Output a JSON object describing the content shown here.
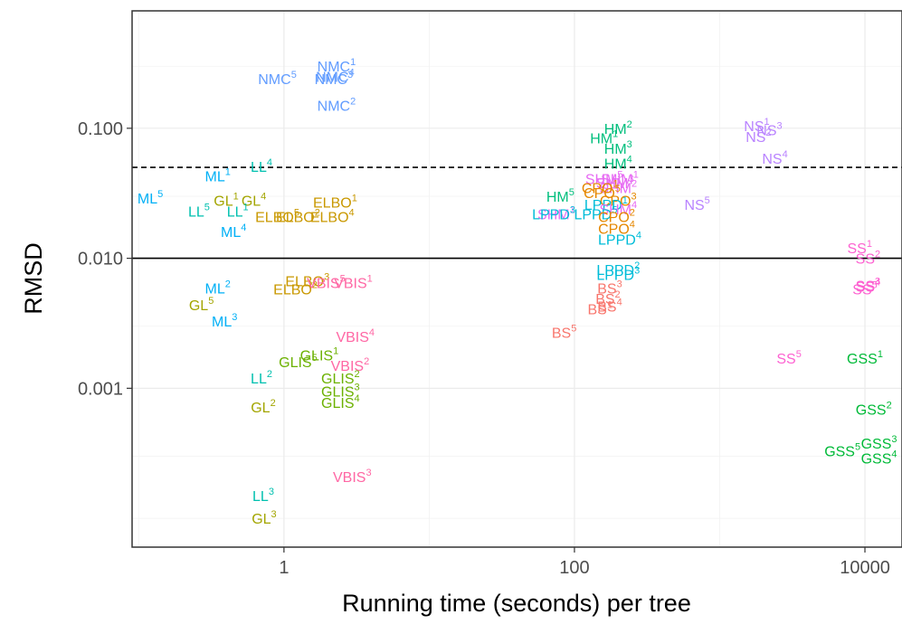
{
  "chart_data": {
    "type": "scatter",
    "xlabel": "Running time (seconds) per tree",
    "ylabel": "RMSD",
    "x_scale": "log10",
    "y_scale": "log10",
    "xlim": [
      0.09,
      18000
    ],
    "ylim": [
      6e-05,
      0.8
    ],
    "x_ticks": [
      {
        "value": 1,
        "label": "1"
      },
      {
        "value": 100,
        "label": "100"
      },
      {
        "value": 10000,
        "label": "10000"
      }
    ],
    "y_ticks": [
      {
        "value": 0.001,
        "label": "0.001"
      },
      {
        "value": 0.01,
        "label": "0.010"
      },
      {
        "value": 0.1,
        "label": "0.100"
      }
    ],
    "grid": true,
    "reference_lines": [
      {
        "y": 0.01,
        "style": "solid"
      },
      {
        "y": 0.05,
        "style": "dashed"
      }
    ],
    "colors": {
      "BS": "#F8766D",
      "CPO": "#E58700",
      "ELBO": "#C99800",
      "GL": "#A3A500",
      "GLIS": "#6BB100",
      "GSS": "#00BA38",
      "HM": "#00BF7D",
      "LL": "#00C0AF",
      "LPPD": "#00BCD8",
      "ML": "#00B0F6",
      "NMC": "#619CFF",
      "NS": "#B983FF",
      "SHM": "#E76BF3",
      "SS": "#FD61D1",
      "VBIS": "#FF67A4"
    },
    "points": [
      {
        "method": "NMC",
        "run": "1",
        "x": 2.3,
        "y": 0.3
      },
      {
        "method": "NMC",
        "run": "4",
        "x": 2.25,
        "y": 0.25
      },
      {
        "method": "NMC",
        "run": "3",
        "x": 2.2,
        "y": 0.24
      },
      {
        "method": "NMC",
        "run": "5",
        "x": 0.9,
        "y": 0.24
      },
      {
        "method": "NMC",
        "run": "2",
        "x": 2.3,
        "y": 0.15
      },
      {
        "method": "LL",
        "run": "4",
        "x": 0.7,
        "y": 0.051
      },
      {
        "method": "ML",
        "run": "1",
        "x": 0.35,
        "y": 0.043
      },
      {
        "method": "ML",
        "run": "5",
        "x": 0.12,
        "y": 0.029
      },
      {
        "method": "GL",
        "run": "1",
        "x": 0.4,
        "y": 0.028
      },
      {
        "method": "GL",
        "run": "4",
        "x": 0.62,
        "y": 0.028
      },
      {
        "method": "LL",
        "run": "5",
        "x": 0.26,
        "y": 0.023
      },
      {
        "method": "LL",
        "run": "1",
        "x": 0.48,
        "y": 0.023
      },
      {
        "method": "ML",
        "run": "4",
        "x": 0.45,
        "y": 0.016
      },
      {
        "method": "ELBO",
        "run": "1",
        "x": 2.25,
        "y": 0.027
      },
      {
        "method": "ELBO",
        "run": "5",
        "x": 0.9,
        "y": 0.021
      },
      {
        "method": "ELBO",
        "run": "4",
        "x": 2.15,
        "y": 0.021
      },
      {
        "method": "ELBO",
        "run": "2",
        "x": 1.25,
        "y": 0.021
      },
      {
        "method": "ELBO",
        "run": "3",
        "x": 1.45,
        "y": 0.0067
      },
      {
        "method": "ELBO",
        "run": "2",
        "x": 1.2,
        "y": 0.0058
      },
      {
        "method": "VBIS",
        "run": "5",
        "x": 1.95,
        "y": 0.0065
      },
      {
        "method": "VBIS",
        "run": "1",
        "x": 3.0,
        "y": 0.0065
      },
      {
        "method": "ML",
        "run": "2",
        "x": 0.35,
        "y": 0.0059
      },
      {
        "method": "GL",
        "run": "5",
        "x": 0.27,
        "y": 0.0044
      },
      {
        "method": "ML",
        "run": "3",
        "x": 0.39,
        "y": 0.0033
      },
      {
        "method": "VBIS",
        "run": "4",
        "x": 3.1,
        "y": 0.0025
      },
      {
        "method": "GLIS",
        "run": "1",
        "x": 1.75,
        "y": 0.0018
      },
      {
        "method": "GLIS",
        "run": "5",
        "x": 1.25,
        "y": 0.0016
      },
      {
        "method": "VBIS",
        "run": "2",
        "x": 2.85,
        "y": 0.0015
      },
      {
        "method": "GLIS",
        "run": "2",
        "x": 2.45,
        "y": 0.0012
      },
      {
        "method": "GLIS",
        "run": "3",
        "x": 2.45,
        "y": 0.00095
      },
      {
        "method": "GLIS",
        "run": "4",
        "x": 2.45,
        "y": 0.00078
      },
      {
        "method": "VBIS",
        "run": "3",
        "x": 2.95,
        "y": 0.00021
      },
      {
        "method": "LL",
        "run": "2",
        "x": 0.7,
        "y": 0.0012
      },
      {
        "method": "GL",
        "run": "2",
        "x": 0.72,
        "y": 0.00072
      },
      {
        "method": "LL",
        "run": "3",
        "x": 0.72,
        "y": 0.00015
      },
      {
        "method": "GL",
        "run": "3",
        "x": 0.73,
        "y": 0.0001
      },
      {
        "method": "HM",
        "run": "2",
        "x": 200,
        "y": 0.1
      },
      {
        "method": "HM",
        "run": "1",
        "x": 160,
        "y": 0.084
      },
      {
        "method": "HM",
        "run": "3",
        "x": 200,
        "y": 0.07
      },
      {
        "method": "HM",
        "run": "4",
        "x": 200,
        "y": 0.054
      },
      {
        "method": "SHM",
        "run": "5",
        "x": 160,
        "y": 0.041
      },
      {
        "method": "SHM",
        "run": "1",
        "x": 205,
        "y": 0.041
      },
      {
        "method": "SHM",
        "run": "2",
        "x": 200,
        "y": 0.035
      },
      {
        "method": "SHM",
        "run": "3",
        "x": 190,
        "y": 0.038
      },
      {
        "method": "HM",
        "run": "5",
        "x": 80,
        "y": 0.03
      },
      {
        "method": "CPO",
        "run": "1",
        "x": 150,
        "y": 0.035
      },
      {
        "method": "CPO",
        "run": "5",
        "x": 155,
        "y": 0.032
      },
      {
        "method": "CPO",
        "run": "3",
        "x": 200,
        "y": 0.028
      },
      {
        "method": "LPPD",
        "run": "1",
        "x": 165,
        "y": 0.026
      },
      {
        "method": "SHM",
        "run": "4",
        "x": 200,
        "y": 0.024
      },
      {
        "method": "LPPD",
        "run": "5",
        "x": 140,
        "y": 0.022
      },
      {
        "method": "SHM",
        "run": "1",
        "x": 75,
        "y": 0.022
      },
      {
        "method": "LPPD",
        "run": "3",
        "x": 72,
        "y": 0.022
      },
      {
        "method": "CPO",
        "run": "2",
        "x": 195,
        "y": 0.021
      },
      {
        "method": "CPO",
        "run": "4",
        "x": 195,
        "y": 0.017
      },
      {
        "method": "LPPD",
        "run": "4",
        "x": 205,
        "y": 0.014
      },
      {
        "method": "LPPD",
        "run": "2",
        "x": 200,
        "y": 0.0082
      },
      {
        "method": "LPPD",
        "run": "3",
        "x": 200,
        "y": 0.0075
      },
      {
        "method": "BS",
        "run": "3",
        "x": 175,
        "y": 0.0059
      },
      {
        "method": "BS",
        "run": "2",
        "x": 170,
        "y": 0.0049
      },
      {
        "method": "BS",
        "run": "4",
        "x": 175,
        "y": 0.0043
      },
      {
        "method": "BS",
        "run": "1",
        "x": 150,
        "y": 0.0041
      },
      {
        "method": "BS",
        "run": "5",
        "x": 85,
        "y": 0.0027
      },
      {
        "method": "NS",
        "run": "1",
        "x": 1800,
        "y": 0.105
      },
      {
        "method": "NS",
        "run": "3",
        "x": 2200,
        "y": 0.097
      },
      {
        "method": "NS",
        "run": "2",
        "x": 1850,
        "y": 0.086
      },
      {
        "method": "NS",
        "run": "4",
        "x": 2400,
        "y": 0.059
      },
      {
        "method": "NS",
        "run": "5",
        "x": 700,
        "y": 0.026
      },
      {
        "method": "SS",
        "run": "1",
        "x": 9200,
        "y": 0.012
      },
      {
        "method": "SS",
        "run": "2",
        "x": 10500,
        "y": 0.01
      },
      {
        "method": "SS",
        "run": "3",
        "x": 10500,
        "y": 0.0062
      },
      {
        "method": "SS",
        "run": "4",
        "x": 10500,
        "y": 0.0061
      },
      {
        "method": "SS",
        "run": "5",
        "x": 10000,
        "y": 0.0058
      },
      {
        "method": "SS",
        "run": "5",
        "x": 3000,
        "y": 0.0017
      },
      {
        "method": "GSS",
        "run": "1",
        "x": 10000,
        "y": 0.0017
      },
      {
        "method": "GSS",
        "run": "2",
        "x": 11500,
        "y": 0.00069
      },
      {
        "method": "GSS",
        "run": "3",
        "x": 12500,
        "y": 0.00038
      },
      {
        "method": "GSS",
        "run": "5",
        "x": 7000,
        "y": 0.00033
      },
      {
        "method": "GSS",
        "run": "4",
        "x": 12500,
        "y": 0.00029
      }
    ]
  }
}
